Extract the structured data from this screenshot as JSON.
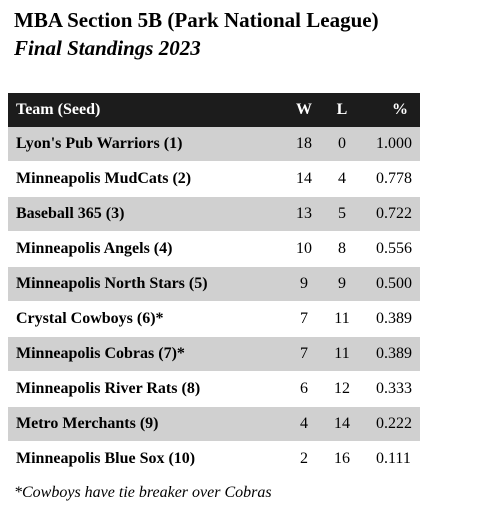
{
  "header": {
    "title": "MBA Section 5B (Park National League)",
    "subtitle": "Final Standings 2023"
  },
  "table": {
    "columns": [
      "Team (Seed)",
      "W",
      "L",
      "%"
    ],
    "rows": [
      [
        "Lyon's Pub Warriors (1)",
        "18",
        "0",
        "1.000"
      ],
      [
        "Minneapolis MudCats (2)",
        "14",
        "4",
        "0.778"
      ],
      [
        "Baseball 365 (3)",
        "13",
        "5",
        "0.722"
      ],
      [
        "Minneapolis Angels (4)",
        "10",
        "8",
        "0.556"
      ],
      [
        "Minneapolis North Stars (5)",
        "9",
        "9",
        "0.500"
      ],
      [
        "Crystal Cowboys (6)*",
        "7",
        "11",
        "0.389"
      ],
      [
        "Minneapolis Cobras (7)*",
        "7",
        "11",
        "0.389"
      ],
      [
        "Minneapolis River Rats (8)",
        "6",
        "12",
        "0.333"
      ],
      [
        "Metro Merchants (9)",
        "4",
        "14",
        "0.222"
      ],
      [
        "Minneapolis Blue Sox (10)",
        "2",
        "16",
        "0.111"
      ]
    ]
  },
  "footnote": "*Cowboys have tie breaker over Cobras"
}
